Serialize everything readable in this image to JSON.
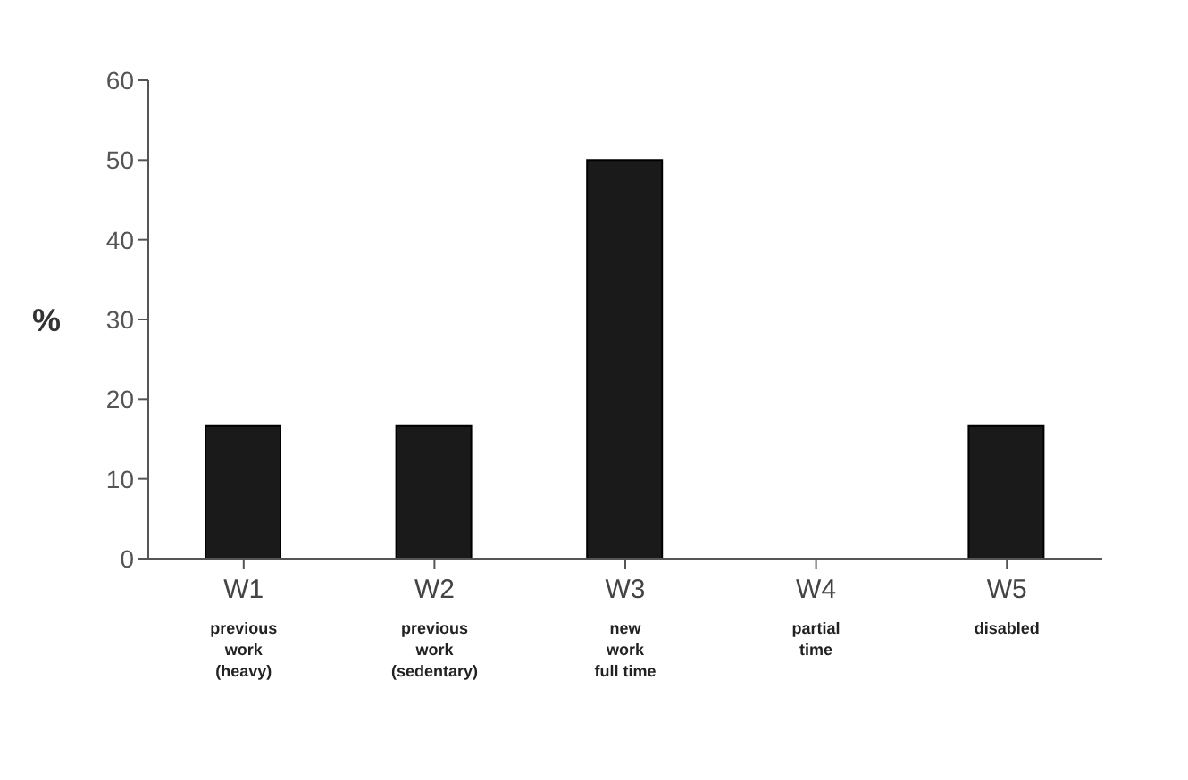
{
  "chart_data": {
    "type": "bar",
    "ylabel": "%",
    "categories": [
      "W1\nprevious\nwork\n(heavy)",
      "W2\nprevious\nwork\n(sedentary)",
      "W3\nnew\nwork\nfull time",
      "W4\npartial\ntime",
      "W5\ndisabled"
    ],
    "values": [
      16.7,
      16.7,
      50,
      0,
      16.7
    ],
    "color": "#1a1a1a",
    "ylim": [
      0,
      60
    ],
    "yticks": [
      0,
      10,
      20,
      30,
      40,
      50,
      60
    ],
    "grid": false,
    "legend": false
  }
}
